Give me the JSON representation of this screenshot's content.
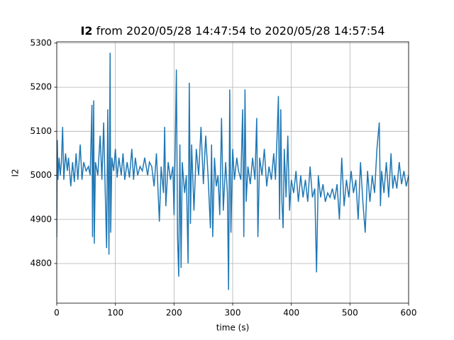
{
  "chart_data": {
    "type": "line",
    "title": [
      "I2",
      "from 2020/05/28 14:47:54 to 2020/05/28 14:57:54"
    ],
    "xlabel": "time (s)",
    "ylabel": "I2",
    "xlim": [
      0,
      600
    ],
    "xticks": [
      0,
      100,
      200,
      300,
      400,
      500,
      600
    ],
    "ylim": [
      4710,
      5303
    ],
    "yticks": [
      4800,
      4900,
      5000,
      5100,
      5200,
      5300
    ],
    "grid": true,
    "series": [
      {
        "name": "I2",
        "color": "#1f77b4",
        "x": [
          0,
          1,
          2,
          4,
          6,
          8,
          10,
          12,
          15,
          18,
          20,
          24,
          27,
          30,
          33,
          36,
          40,
          43,
          46,
          50,
          54,
          57,
          60,
          61,
          63,
          64,
          66,
          70,
          74,
          77,
          80,
          82,
          85,
          87,
          89,
          91,
          92,
          94,
          97,
          100,
          103,
          106,
          110,
          113,
          116,
          120,
          124,
          128,
          131,
          134,
          138,
          142,
          146,
          150,
          155,
          158,
          162,
          166,
          170,
          175,
          178,
          182,
          184,
          186,
          190,
          194,
          198,
          200,
          202,
          204,
          206,
          208,
          210,
          212,
          214,
          218,
          221,
          224,
          226,
          228,
          230,
          234,
          238,
          242,
          246,
          250,
          254,
          258,
          262,
          264,
          266,
          269,
          272,
          275,
          278,
          281,
          284,
          288,
          291,
          293,
          295,
          297,
          300,
          303,
          307,
          310,
          314,
          317,
          319,
          321,
          323,
          326,
          330,
          334,
          338,
          341,
          343,
          346,
          350,
          354,
          358,
          362,
          366,
          370,
          373,
          376,
          378,
          380,
          382,
          384,
          386,
          388,
          391,
          394,
          397,
          400,
          404,
          408,
          412,
          416,
          420,
          424,
          428,
          432,
          436,
          440,
          443,
          446,
          450,
          454,
          458,
          462,
          466,
          470,
          474,
          478,
          482,
          486,
          490,
          494,
          498,
          502,
          506,
          510,
          514,
          518,
          522,
          526,
          530,
          534,
          538,
          542,
          546,
          550,
          552,
          554,
          558,
          562,
          566,
          570,
          573,
          576,
          580,
          584,
          588,
          592,
          596,
          600
        ],
        "values": [
          4860,
          5080,
          4990,
          5040,
          5000,
          5030,
          5110,
          4990,
          5050,
          5010,
          5040,
          4975,
          5030,
          4985,
          5050,
          4990,
          5070,
          4990,
          5030,
          5010,
          5020,
          5000,
          5160,
          4860,
          5170,
          4845,
          5030,
          5000,
          5090,
          4990,
          5120,
          5000,
          4835,
          5150,
          4820,
          5278,
          4870,
          5040,
          5010,
          5060,
          4995,
          5040,
          5000,
          5050,
          4990,
          5030,
          4995,
          5060,
          4990,
          5040,
          5000,
          5020,
          5010,
          5040,
          5000,
          5030,
          5020,
          4975,
          5050,
          4895,
          5020,
          4960,
          5110,
          4930,
          5030,
          4990,
          5020,
          4910,
          5060,
          5240,
          4860,
          4770,
          5070,
          4790,
          5030,
          4960,
          5000,
          4800,
          5210,
          4890,
          5070,
          4920,
          5060,
          5000,
          5110,
          4980,
          5090,
          5000,
          4880,
          5070,
          4860,
          5040,
          4975,
          5000,
          4910,
          5130,
          4920,
          5030,
          4960,
          4740,
          5195,
          4870,
          5060,
          4990,
          5040,
          5010,
          4990,
          5150,
          4860,
          5195,
          4940,
          5020,
          4980,
          5040,
          4990,
          5130,
          4860,
          5040,
          5000,
          5060,
          4975,
          5020,
          4990,
          5050,
          4990,
          5100,
          5180,
          4900,
          5150,
          4940,
          4880,
          5060,
          4950,
          5090,
          4920,
          4990,
          4960,
          5010,
          4940,
          5000,
          4950,
          4990,
          4940,
          5020,
          4950,
          4970,
          4780,
          5000,
          4950,
          4980,
          4940,
          4960,
          4950,
          4970,
          4945,
          4980,
          4900,
          5040,
          4930,
          4990,
          4950,
          5010,
          4960,
          4990,
          4900,
          5030,
          4940,
          4870,
          5010,
          4940,
          5000,
          4960,
          5060,
          5120,
          4930,
          5010,
          4960,
          5030,
          4950,
          5050,
          4970,
          5000,
          4970,
          5030,
          4980,
          5010,
          4975,
          5000
        ]
      }
    ]
  }
}
